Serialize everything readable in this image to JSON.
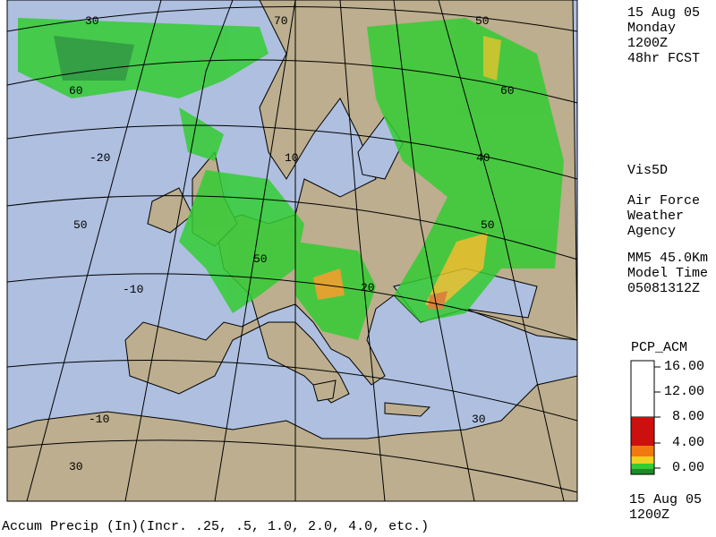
{
  "header": {
    "date": "15 Aug 05",
    "day": "Monday",
    "time": "1200Z",
    "forecast": "48hr FCST"
  },
  "info": {
    "software": "Vis5D",
    "agency": [
      "Air Force",
      "Weather",
      "Agency"
    ],
    "model": "MM5 45.0Km",
    "model_time_label": "Model Time",
    "model_time": "05081312Z"
  },
  "legend": {
    "title": "PCP_ACM",
    "labels": [
      "16.00",
      "12.00",
      "8.00",
      "4.00",
      "0.00"
    ]
  },
  "map": {
    "graticule_labels": [
      "30",
      "60",
      "-20",
      "50",
      "-10",
      "-10",
      "30",
      "70",
      "10",
      "50",
      "20",
      "50",
      "60",
      "40",
      "50",
      "30"
    ]
  },
  "footer": {
    "date": "15 Aug 05",
    "time": "1200Z",
    "caption": "Accum Precip (In)(Incr. .25, .5, 1.0, 2.0, 4.0, etc.)"
  }
}
